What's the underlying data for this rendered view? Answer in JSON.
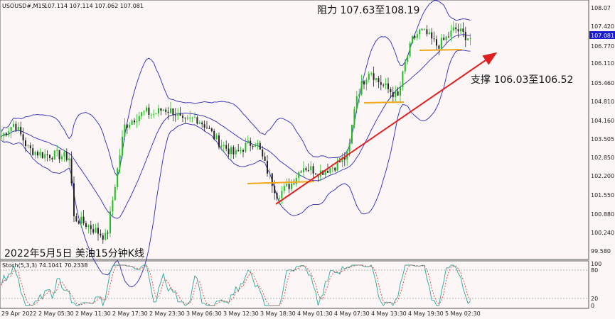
{
  "header": {
    "symbol": "USOUSD#,M15",
    "ohlc": "107.114 107.114 107.062 107.081"
  },
  "price_axis": {
    "ticks": [
      "108.07",
      "107.420",
      "106.770",
      "106.110",
      "105.460",
      "104.810",
      "104.160",
      "103.505",
      "102.850",
      "102.200",
      "101.550",
      "100.880",
      "100.240",
      "99.580"
    ],
    "current_price": "107.081",
    "current_price_color": "#1a1acc"
  },
  "time_axis": {
    "ticks": [
      "29 Apr 2022",
      "2 May 05:30",
      "2 May 11:30",
      "2 May 17:30",
      "2 May 23:30",
      "3 May 06:30",
      "3 May 12:30",
      "3 May 18:30",
      "4 May 01:30",
      "4 May 07:30",
      "4 May 13:30",
      "4 May 19:30",
      "5 May 02:30"
    ]
  },
  "annotations": {
    "resistance": "阻力 107.63至108.19",
    "support": "支撑 106.03至106.52",
    "caption": "2022年5月5日 美油15分钟K线"
  },
  "stoch": {
    "header": "Stoch(5,3,3) 74.1041 70.2338",
    "ticks": [
      "100",
      "80",
      "20",
      "0"
    ]
  },
  "colors": {
    "bull": "#1fbf1f",
    "bear": "#222222",
    "bands": "#2a2ab8",
    "trendline": "#e02020",
    "support_line": "#f0a818",
    "stoch_main": "#2aa89a",
    "stoch_signal": "#e04040"
  },
  "chart_data": {
    "type": "candlestick",
    "price_range": [
      99.5,
      108.2
    ],
    "key_path": [
      [
        0,
        103.6
      ],
      [
        20,
        104.1
      ],
      [
        40,
        103.2
      ],
      [
        60,
        103.0
      ],
      [
        80,
        103.0
      ],
      [
        98,
        102.9
      ],
      [
        104,
        100.8
      ],
      [
        120,
        100.6
      ],
      [
        150,
        100.1
      ],
      [
        162,
        102.0
      ],
      [
        175,
        104.0
      ],
      [
        190,
        104.3
      ],
      [
        205,
        104.5
      ],
      [
        215,
        104.4
      ],
      [
        230,
        104.6
      ],
      [
        245,
        104.5
      ],
      [
        258,
        104.1
      ],
      [
        275,
        104.3
      ],
      [
        290,
        104.0
      ],
      [
        305,
        103.5
      ],
      [
        330,
        103.0
      ],
      [
        345,
        103.3
      ],
      [
        360,
        103.5
      ],
      [
        375,
        102.5
      ],
      [
        390,
        101.6
      ],
      [
        410,
        102.0
      ],
      [
        425,
        102.6
      ],
      [
        450,
        102.4
      ],
      [
        470,
        102.6
      ],
      [
        490,
        103.0
      ],
      [
        500,
        105.0
      ],
      [
        510,
        105.5
      ],
      [
        520,
        106.0
      ],
      [
        530,
        105.6
      ],
      [
        545,
        105.3
      ],
      [
        560,
        105.0
      ],
      [
        570,
        106.2
      ],
      [
        580,
        107.0
      ],
      [
        590,
        107.3
      ],
      [
        600,
        107.2
      ],
      [
        615,
        106.8
      ],
      [
        625,
        107.0
      ],
      [
        640,
        107.4
      ],
      [
        652,
        107.2
      ],
      [
        660,
        107.08
      ]
    ]
  }
}
